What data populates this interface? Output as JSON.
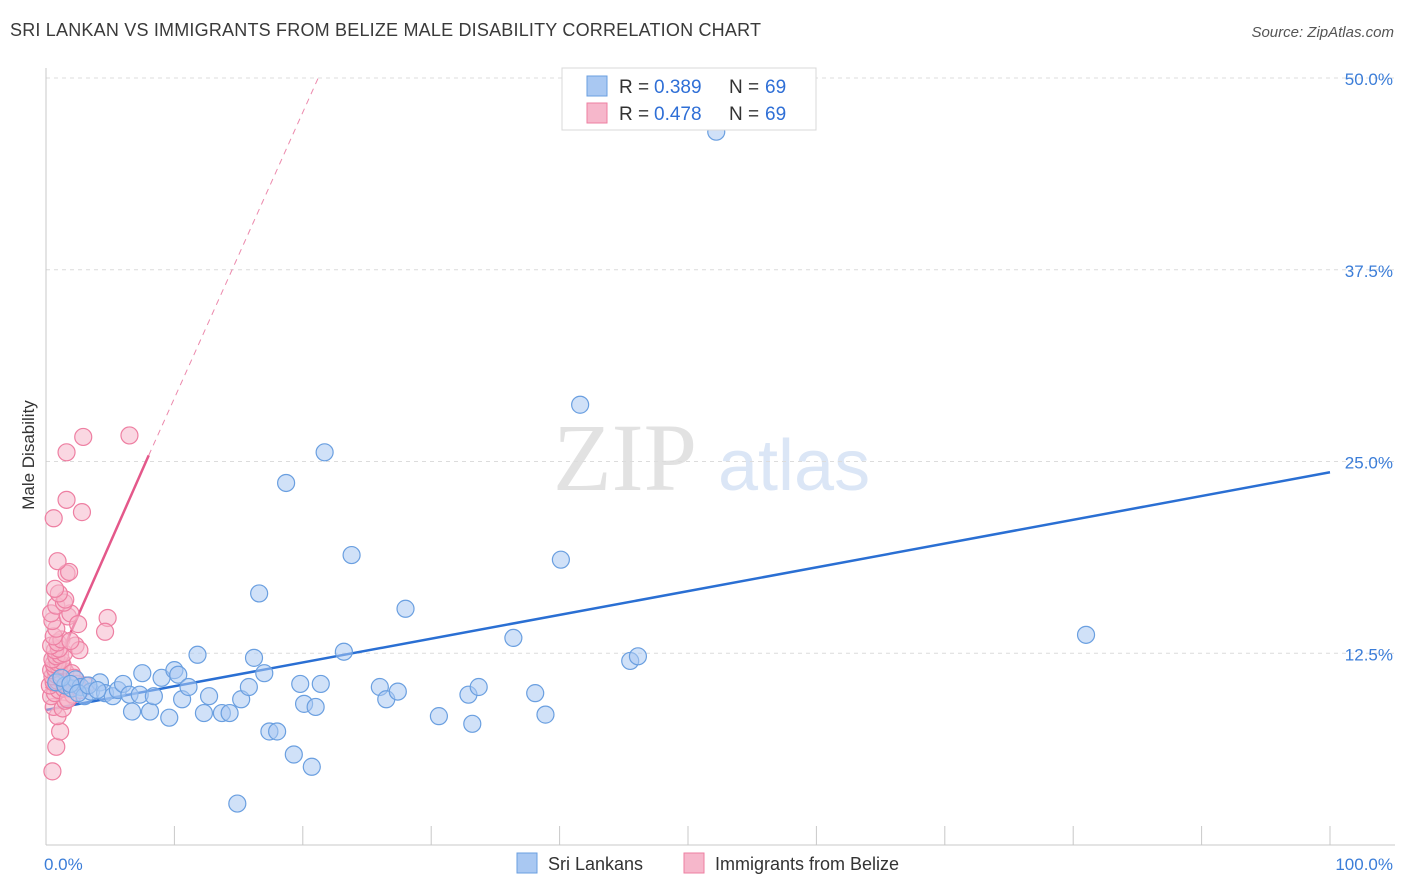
{
  "header": {
    "title": "SRI LANKAN VS IMMIGRANTS FROM BELIZE MALE DISABILITY CORRELATION CHART",
    "source": "Source: ZipAtlas.com"
  },
  "watermark": {
    "zip": "ZIP",
    "atlas": "atlas"
  },
  "colors": {
    "blue_fill": "#a9c8f2",
    "blue_stroke": "#6a9fe0",
    "blue_line": "#2a6fd3",
    "pink_fill": "#f6b7cb",
    "pink_stroke": "#ee7fa2",
    "pink_line": "#e4588a",
    "grid": "#dcdcdc",
    "tick_text": "#3b7dd8"
  },
  "legend": {
    "rows": [
      {
        "series": "blue",
        "r_label": "R = ",
        "r_value": "0.389",
        "n_label": "N = ",
        "n_value": "69"
      },
      {
        "series": "pink",
        "r_label": "R = ",
        "r_value": "0.478",
        "n_label": "N = ",
        "n_value": "69"
      }
    ]
  },
  "chart_data": {
    "type": "scatter",
    "title": "SRI LANKAN VS IMMIGRANTS FROM BELIZE MALE DISABILITY CORRELATION CHART",
    "xlabel": "",
    "ylabel": "Male Disability",
    "xlim": [
      0,
      100
    ],
    "ylim": [
      0,
      50
    ],
    "x_tick_labels": [
      "0.0%",
      "100.0%"
    ],
    "y_ticks": [
      12.5,
      25.0,
      37.5,
      50.0
    ],
    "y_tick_labels": [
      "12.5%",
      "25.0%",
      "37.5%",
      "50.0%"
    ],
    "legend_position": "top-center",
    "series": [
      {
        "name": "Sri Lankans",
        "color": "blue",
        "R": 0.389,
        "N": 69,
        "trend": {
          "x": [
            0,
            100
          ],
          "y": [
            8.8,
            24.3
          ],
          "dashed_from": null
        },
        "points": [
          [
            0.8,
            10.6
          ],
          [
            1.5,
            10.4
          ],
          [
            2.0,
            10.2
          ],
          [
            2.3,
            10.8
          ],
          [
            2.7,
            10.3
          ],
          [
            3.0,
            9.7
          ],
          [
            3.5,
            10.0
          ],
          [
            4.2,
            10.6
          ],
          [
            4.6,
            9.9
          ],
          [
            5.2,
            9.7
          ],
          [
            5.6,
            10.1
          ],
          [
            6.0,
            10.5
          ],
          [
            6.5,
            9.8
          ],
          [
            6.7,
            8.7
          ],
          [
            7.5,
            11.2
          ],
          [
            7.3,
            9.8
          ],
          [
            8.1,
            8.7
          ],
          [
            8.4,
            9.7
          ],
          [
            9.0,
            10.9
          ],
          [
            9.6,
            8.3
          ],
          [
            10.0,
            11.4
          ],
          [
            10.3,
            11.1
          ],
          [
            10.6,
            9.5
          ],
          [
            11.1,
            10.3
          ],
          [
            11.8,
            12.4
          ],
          [
            12.3,
            8.6
          ],
          [
            12.7,
            9.7
          ],
          [
            13.7,
            8.6
          ],
          [
            14.3,
            8.6
          ],
          [
            14.9,
            2.7
          ],
          [
            15.2,
            9.5
          ],
          [
            15.8,
            10.3
          ],
          [
            16.2,
            12.2
          ],
          [
            16.6,
            16.4
          ],
          [
            17.0,
            11.2
          ],
          [
            17.4,
            7.4
          ],
          [
            18.0,
            7.4
          ],
          [
            18.7,
            23.6
          ],
          [
            19.3,
            5.9
          ],
          [
            19.8,
            10.5
          ],
          [
            20.1,
            9.2
          ],
          [
            20.7,
            5.1
          ],
          [
            21.0,
            9.0
          ],
          [
            21.4,
            10.5
          ],
          [
            21.7,
            25.6
          ],
          [
            23.2,
            12.6
          ],
          [
            23.8,
            18.9
          ],
          [
            26.0,
            10.3
          ],
          [
            26.5,
            9.5
          ],
          [
            27.4,
            10.0
          ],
          [
            28.0,
            15.4
          ],
          [
            30.6,
            8.4
          ],
          [
            32.9,
            9.8
          ],
          [
            33.2,
            7.9
          ],
          [
            33.7,
            10.3
          ],
          [
            36.4,
            13.5
          ],
          [
            38.1,
            9.9
          ],
          [
            38.9,
            8.5
          ],
          [
            40.1,
            18.6
          ],
          [
            41.6,
            28.7
          ],
          [
            45.5,
            12.0
          ],
          [
            46.1,
            12.3
          ],
          [
            52.2,
            46.5
          ],
          [
            81.0,
            13.7
          ],
          [
            1.2,
            10.9
          ],
          [
            1.9,
            10.5
          ],
          [
            2.5,
            9.9
          ],
          [
            3.3,
            10.4
          ],
          [
            4.0,
            10.1
          ]
        ]
      },
      {
        "name": "Immigrants from Belize",
        "color": "pink",
        "R": 0.478,
        "N": 69,
        "trend": {
          "x": [
            0,
            8.0,
            21.2
          ],
          "y": [
            10.2,
            25.4,
            50.0
          ],
          "dashed_from": 8.0
        },
        "points": [
          [
            0.5,
            4.8
          ],
          [
            0.8,
            6.4
          ],
          [
            1.1,
            7.4
          ],
          [
            0.9,
            8.4
          ],
          [
            0.6,
            9.0
          ],
          [
            1.3,
            8.9
          ],
          [
            1.5,
            9.4
          ],
          [
            0.4,
            9.7
          ],
          [
            0.7,
            9.9
          ],
          [
            1.0,
            10.1
          ],
          [
            1.4,
            10.2
          ],
          [
            1.8,
            10.2
          ],
          [
            0.3,
            10.4
          ],
          [
            0.6,
            10.6
          ],
          [
            0.9,
            10.7
          ],
          [
            1.2,
            10.8
          ],
          [
            0.5,
            11.0
          ],
          [
            0.8,
            11.1
          ],
          [
            1.1,
            11.2
          ],
          [
            1.5,
            11.3
          ],
          [
            0.4,
            11.4
          ],
          [
            0.7,
            11.5
          ],
          [
            1.0,
            11.6
          ],
          [
            1.3,
            11.7
          ],
          [
            0.6,
            11.8
          ],
          [
            0.9,
            11.9
          ],
          [
            1.2,
            12.0
          ],
          [
            0.5,
            12.1
          ],
          [
            0.8,
            12.3
          ],
          [
            1.1,
            12.4
          ],
          [
            1.4,
            12.5
          ],
          [
            0.7,
            12.7
          ],
          [
            1.0,
            12.8
          ],
          [
            0.4,
            13.0
          ],
          [
            0.9,
            13.2
          ],
          [
            1.2,
            13.4
          ],
          [
            0.6,
            13.6
          ],
          [
            0.8,
            14.1
          ],
          [
            0.5,
            14.6
          ],
          [
            1.7,
            14.9
          ],
          [
            0.4,
            15.1
          ],
          [
            1.9,
            15.1
          ],
          [
            0.8,
            15.6
          ],
          [
            1.4,
            15.8
          ],
          [
            1.5,
            16.0
          ],
          [
            1.0,
            16.4
          ],
          [
            0.7,
            16.7
          ],
          [
            1.6,
            17.7
          ],
          [
            1.8,
            17.8
          ],
          [
            0.9,
            18.5
          ],
          [
            0.6,
            21.3
          ],
          [
            2.8,
            21.7
          ],
          [
            1.6,
            22.5
          ],
          [
            1.6,
            25.6
          ],
          [
            2.9,
            26.6
          ],
          [
            6.5,
            26.7
          ],
          [
            4.8,
            14.8
          ],
          [
            4.6,
            13.9
          ],
          [
            2.3,
            13.0
          ],
          [
            2.6,
            12.7
          ],
          [
            2.0,
            11.2
          ],
          [
            2.4,
            10.5
          ],
          [
            2.1,
            9.8
          ],
          [
            1.7,
            9.5
          ],
          [
            2.2,
            10.9
          ],
          [
            2.7,
            10.1
          ],
          [
            3.1,
            10.4
          ],
          [
            1.9,
            13.3
          ],
          [
            2.5,
            14.4
          ]
        ]
      }
    ]
  },
  "bottom_legend": {
    "items": [
      {
        "series": "blue",
        "label": "Sri Lankans"
      },
      {
        "series": "pink",
        "label": "Immigrants from Belize"
      }
    ]
  }
}
